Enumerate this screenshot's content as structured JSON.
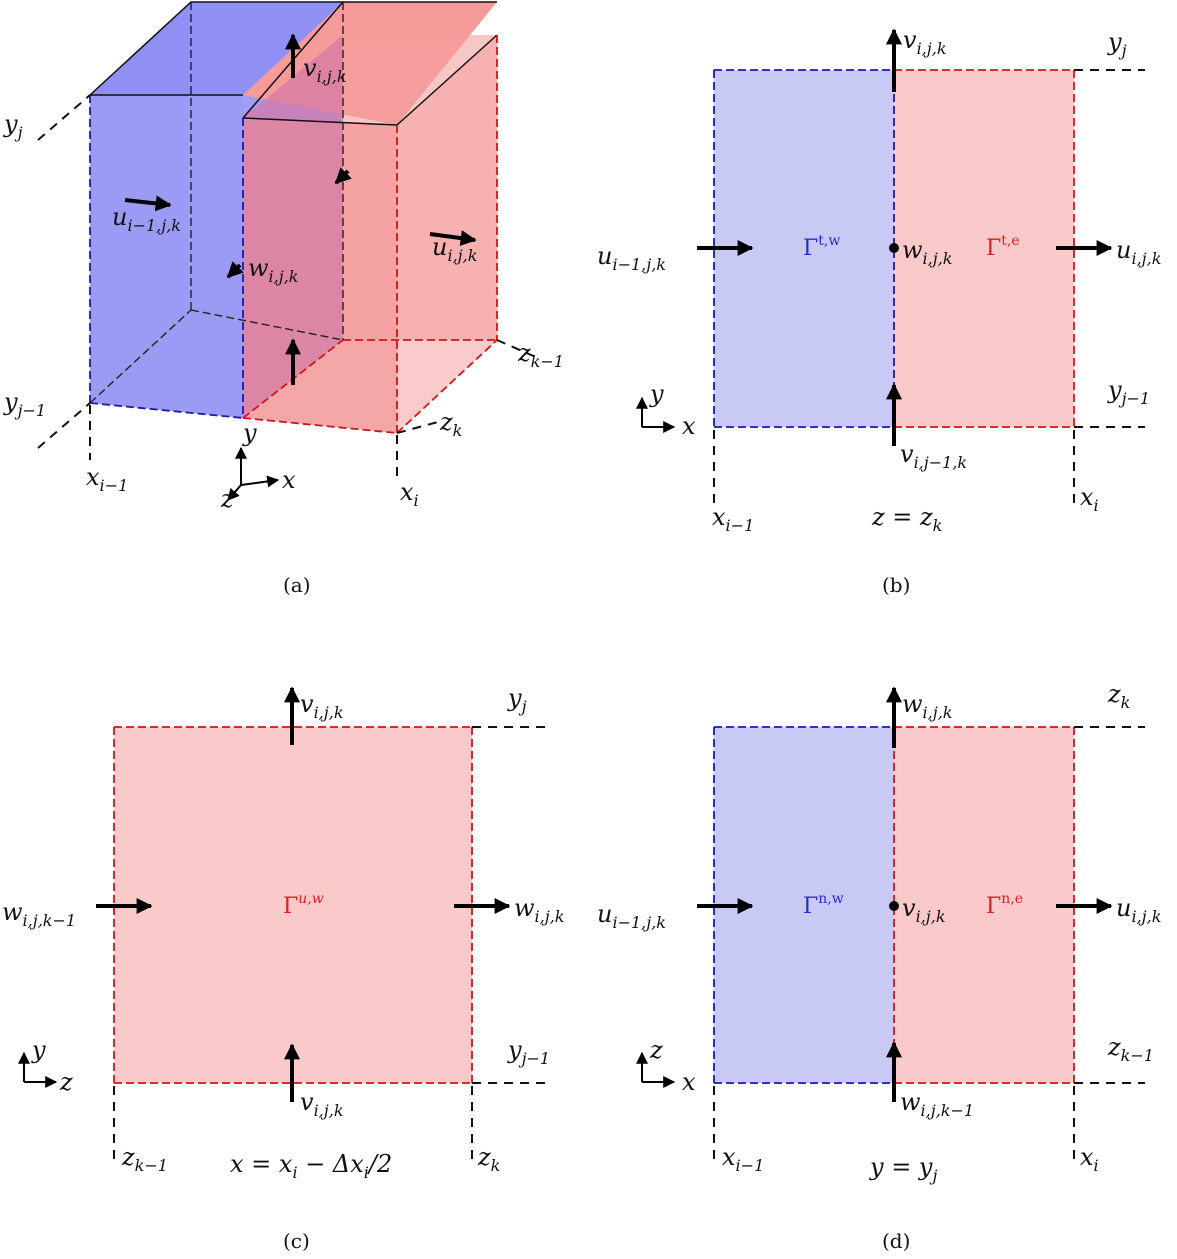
{
  "captions": {
    "a": "(a)",
    "b": "(b)",
    "c": "(c)",
    "d": "(d)"
  },
  "colors": {
    "blue": "#8f8ff4",
    "red": "#f7a2a2",
    "light_blue": "#c9c9f5",
    "light_red": "#fac9c9"
  },
  "panel_a": {
    "y_top": {
      "base": "y",
      "sub": "j"
    },
    "y_bot": {
      "base": "y",
      "sub": "j−1"
    },
    "x_left": {
      "base": "x",
      "sub": "i−1"
    },
    "x_right": {
      "base": "x",
      "sub": "i"
    },
    "z_back": {
      "base": "z",
      "sub": "k−1"
    },
    "z_front": {
      "base": "z",
      "sub": "k"
    },
    "v": {
      "base": "v",
      "sub": "i,j,k"
    },
    "u_left": {
      "base": "u",
      "sub": "i−1,j,k"
    },
    "u_right": {
      "base": "u",
      "sub": "i,j,k"
    },
    "w": {
      "base": "w",
      "sub": "i,j,k"
    },
    "axes": {
      "y": "y",
      "x": "x",
      "z": "z"
    }
  },
  "panel_b": {
    "y_top": {
      "base": "y",
      "sub": "j"
    },
    "y_bot": {
      "base": "y",
      "sub": "j−1"
    },
    "x_left": {
      "base": "x",
      "sub": "i−1"
    },
    "x_right": {
      "base": "x",
      "sub": "i"
    },
    "v_top": {
      "base": "v",
      "sub": "i,j,k"
    },
    "v_bot": {
      "base": "v",
      "sub": "i,j−1,k"
    },
    "u_left": {
      "base": "u",
      "sub": "i−1,j,k"
    },
    "u_right": {
      "base": "u",
      "sub": "i,j,k"
    },
    "w": {
      "base": "w",
      "sub": "i,j,k"
    },
    "gamma_w": {
      "base": "Γ",
      "sup": "t,w"
    },
    "gamma_e": {
      "base": "Γ",
      "sup": "t,e"
    },
    "plane": "z = z",
    "plane_sub": "k",
    "axes": {
      "y": "y",
      "x": "x"
    }
  },
  "panel_c": {
    "y_top": {
      "base": "y",
      "sub": "j"
    },
    "y_bot": {
      "base": "y",
      "sub": "j−1"
    },
    "z_left": {
      "base": "z",
      "sub": "k−1"
    },
    "z_right": {
      "base": "z",
      "sub": "k"
    },
    "v_top": {
      "base": "v",
      "sub": "i,j,k"
    },
    "v_bot": {
      "base": "v",
      "sub": "i,j,k"
    },
    "w_left": {
      "base": "w",
      "sub": "i,j,k−1"
    },
    "w_right": {
      "base": "w",
      "sub": "i,j,k"
    },
    "gamma": {
      "base": "Γ",
      "sup": "u,w"
    },
    "plane": "x = x",
    "plane_sub": "i",
    "plane_tail": " − Δx",
    "plane_sub2": "i",
    "plane_end": "/2",
    "axes": {
      "y": "y",
      "z": "z"
    }
  },
  "panel_d": {
    "z_top": {
      "base": "z",
      "sub": "k"
    },
    "z_bot": {
      "base": "z",
      "sub": "k−1"
    },
    "x_left": {
      "base": "x",
      "sub": "i−1"
    },
    "x_right": {
      "base": "x",
      "sub": "i"
    },
    "w_top": {
      "base": "w",
      "sub": "i,j,k"
    },
    "w_bot": {
      "base": "w",
      "sub": "i,j,k−1"
    },
    "u_left": {
      "base": "u",
      "sub": "i−1,j,k"
    },
    "u_right": {
      "base": "u",
      "sub": "i,j,k"
    },
    "v": {
      "base": "v",
      "sub": "i,j,k"
    },
    "gamma_w": {
      "base": "Γ",
      "sup": "n,w"
    },
    "gamma_e": {
      "base": "Γ",
      "sup": "n,e"
    },
    "plane": "y = y",
    "plane_sub": "j",
    "axes": {
      "z": "z",
      "x": "x"
    }
  }
}
